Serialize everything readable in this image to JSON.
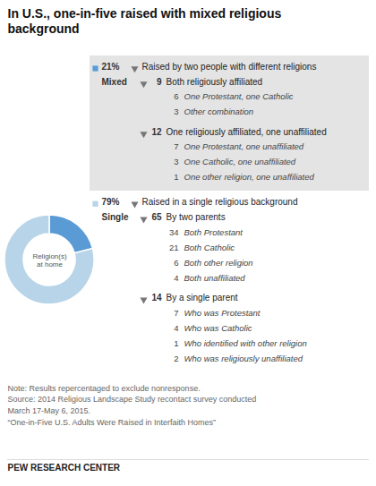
{
  "chart_data": {
    "type": "pie",
    "title": "In U.S., one-in-five raised with mixed religious\nbackground",
    "categories": [
      "Mixed",
      "Single"
    ],
    "values": [
      21,
      79
    ],
    "value_labels": [
      "21%",
      "79%"
    ],
    "colors": [
      "#5b9bd5",
      "#b8d4e8"
    ],
    "center_label": "Religion(s)\nat home",
    "breakdown": [
      {
        "text": "Raised by two people with different religions",
        "groups": [
          {
            "value": 9,
            "text": "Both religiously affiliated",
            "items": [
              {
                "value": 6,
                "text": "One Protestant, one Catholic"
              },
              {
                "value": 3,
                "text": "Other combination"
              }
            ]
          },
          {
            "value": 12,
            "text": "One religiously affiliated, one unaffiliated",
            "items": [
              {
                "value": 7,
                "text": "One Protestant, one unaffiliated"
              },
              {
                "value": 3,
                "text": "One Catholic, one unaffiliated"
              },
              {
                "value": 1,
                "text": "One other religion, one unaffiliated"
              }
            ]
          }
        ]
      },
      {
        "text": "Raised in a single religious background",
        "groups": [
          {
            "value": 65,
            "text": "By two parents",
            "items": [
              {
                "value": 34,
                "text": "Both Protestant"
              },
              {
                "value": 21,
                "text": "Both Catholic"
              },
              {
                "value": 6,
                "text": "Both other religion"
              },
              {
                "value": 4,
                "text": "Both unaffiliated"
              }
            ]
          },
          {
            "value": 14,
            "text": "By a single parent",
            "items": [
              {
                "value": 7,
                "text": "Who was Protestant"
              },
              {
                "value": 4,
                "text": "Who was Catholic"
              },
              {
                "value": 1,
                "text": "Who identified with other religion"
              },
              {
                "value": 2,
                "text": "Who was religiously unaffiliated"
              }
            ]
          }
        ]
      }
    ],
    "panel_color": "#e4e4e4",
    "background": "#ffffff",
    "note": "Note: Results repercentaged to exclude nonresponse.\nSource: 2014 Religious Landscape Study recontact survey conducted\nMarch 17-May 6, 2015.\n“One-in-Five U.S. Adults Were Raised in Interfaith Homes”",
    "footer": "PEW RESEARCH CENTER"
  }
}
